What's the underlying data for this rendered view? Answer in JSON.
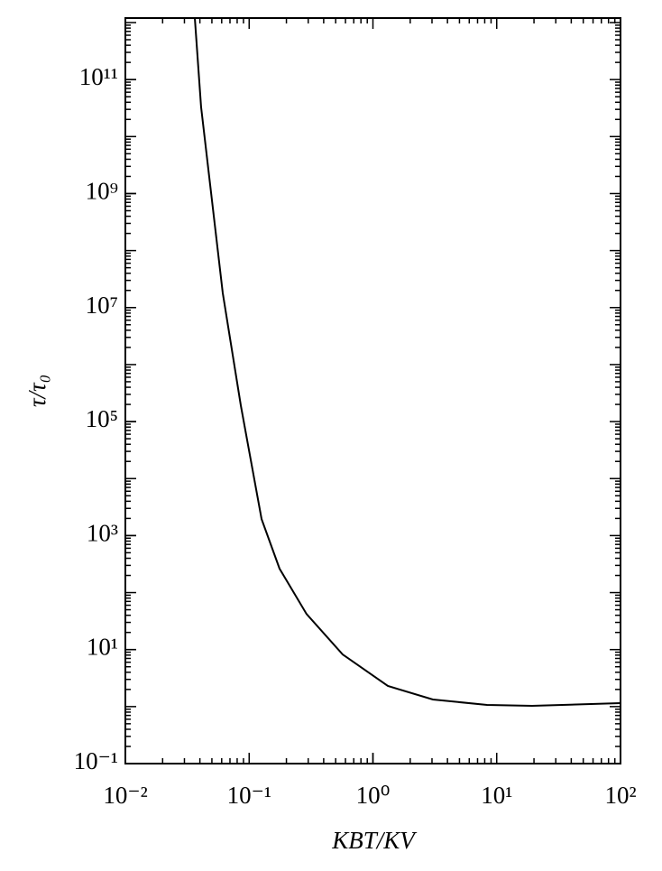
{
  "chart_data": {
    "type": "line",
    "xlabel": "KBT/KV",
    "ylabel": "τ/τ₀",
    "xscale": "log",
    "yscale": "log",
    "xlim": [
      0.01,
      100
    ],
    "ylim": [
      0.1,
      1200000000000.0
    ],
    "xticks": [
      {
        "value": 0.01,
        "label": "10⁻²"
      },
      {
        "value": 0.1,
        "label": "10⁻¹"
      },
      {
        "value": 1,
        "label": "10⁰"
      },
      {
        "value": 10,
        "label": "10¹"
      },
      {
        "value": 100,
        "label": "10²"
      }
    ],
    "yticks": [
      {
        "value": 0.1,
        "label": "10⁻¹"
      },
      {
        "value": 10,
        "label": "10¹"
      },
      {
        "value": 1000,
        "label": "10³"
      },
      {
        "value": 100000,
        "label": "10⁵"
      },
      {
        "value": 10000000,
        "label": "10⁷"
      },
      {
        "value": 1000000000,
        "label": "10⁹"
      },
      {
        "value": 100000000000,
        "label": "10¹¹"
      }
    ],
    "color": "#000000",
    "x": [
      0.0364,
      0.0409,
      0.0612,
      0.0857,
      0.126,
      0.176,
      0.291,
      0.57,
      1.32,
      3.05,
      8.35,
      19.3,
      100
    ],
    "values": [
      1200000000000.0,
      33000000000.0,
      18000000.0,
      190000.0,
      1950,
      263,
      42,
      8.2,
      2.3,
      1.33,
      1.07,
      1.03,
      1.15
    ]
  }
}
